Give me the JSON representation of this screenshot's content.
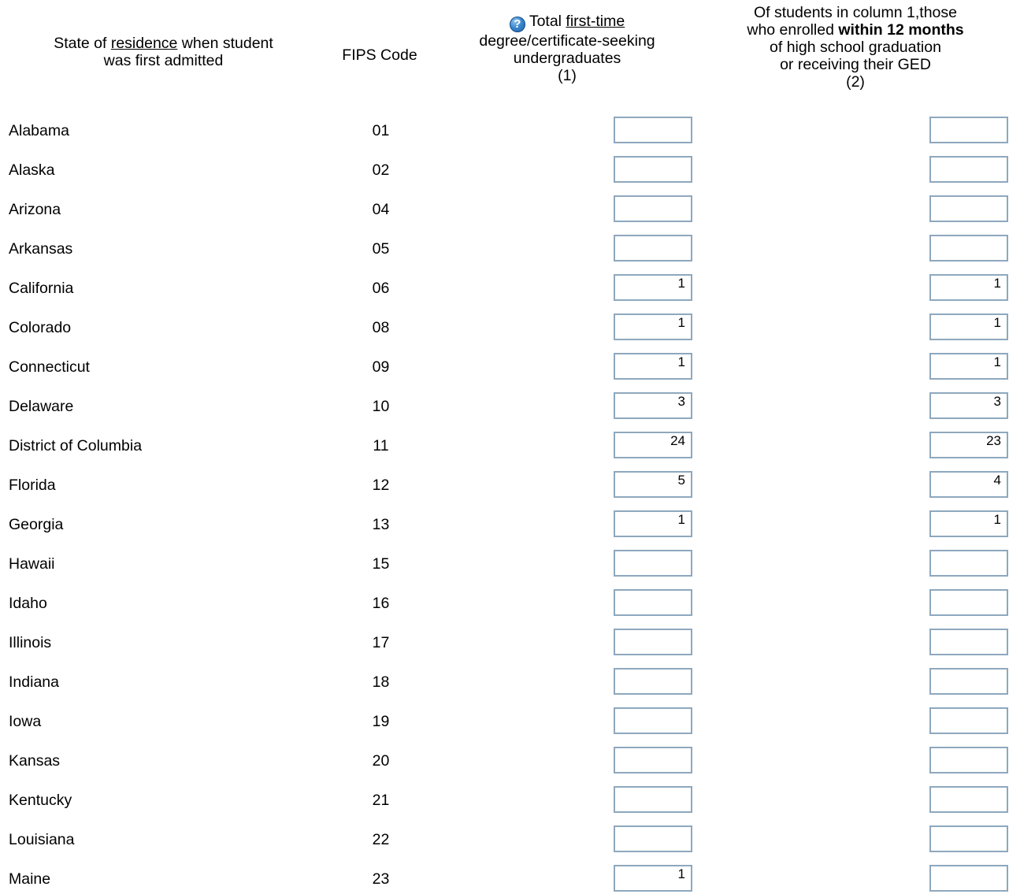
{
  "headers": {
    "state_pre": "State of ",
    "state_link": "residence",
    "state_post_line1": " when student",
    "state_line2": "was first admitted",
    "fips": "FIPS Code",
    "total_pre": "Total ",
    "total_link": "first-time",
    "total_line2": "degree/certificate-seeking",
    "total_line3": "undergraduates",
    "total_num": "(1)",
    "within_line1": "Of students in column 1,those",
    "within_pre": "who enrolled ",
    "within_bold": "within 12 months",
    "within_line3": "of high school graduation",
    "within_line4": "or receiving their GED",
    "within_num": "(2)",
    "help_glyph": "?"
  },
  "icons": {
    "help": "question-help-icon"
  },
  "colors": {
    "input_border": "#8ea8be",
    "help_icon": "#3a86cc"
  },
  "rows": [
    {
      "state": "Alabama",
      "fips": "01",
      "total": "",
      "within12": ""
    },
    {
      "state": "Alaska",
      "fips": "02",
      "total": "",
      "within12": ""
    },
    {
      "state": "Arizona",
      "fips": "04",
      "total": "",
      "within12": ""
    },
    {
      "state": "Arkansas",
      "fips": "05",
      "total": "",
      "within12": ""
    },
    {
      "state": "California",
      "fips": "06",
      "total": "1",
      "within12": "1"
    },
    {
      "state": "Colorado",
      "fips": "08",
      "total": "1",
      "within12": "1"
    },
    {
      "state": "Connecticut",
      "fips": "09",
      "total": "1",
      "within12": "1"
    },
    {
      "state": "Delaware",
      "fips": "10",
      "total": "3",
      "within12": "3"
    },
    {
      "state": "District of Columbia",
      "fips": "11",
      "total": "24",
      "within12": "23"
    },
    {
      "state": "Florida",
      "fips": "12",
      "total": "5",
      "within12": "4"
    },
    {
      "state": "Georgia",
      "fips": "13",
      "total": "1",
      "within12": "1"
    },
    {
      "state": "Hawaii",
      "fips": "15",
      "total": "",
      "within12": ""
    },
    {
      "state": "Idaho",
      "fips": "16",
      "total": "",
      "within12": ""
    },
    {
      "state": "Illinois",
      "fips": "17",
      "total": "",
      "within12": ""
    },
    {
      "state": "Indiana",
      "fips": "18",
      "total": "",
      "within12": ""
    },
    {
      "state": "Iowa",
      "fips": "19",
      "total": "",
      "within12": ""
    },
    {
      "state": "Kansas",
      "fips": "20",
      "total": "",
      "within12": ""
    },
    {
      "state": "Kentucky",
      "fips": "21",
      "total": "",
      "within12": ""
    },
    {
      "state": "Louisiana",
      "fips": "22",
      "total": "",
      "within12": ""
    },
    {
      "state": "Maine",
      "fips": "23",
      "total": "1",
      "within12": ""
    }
  ]
}
